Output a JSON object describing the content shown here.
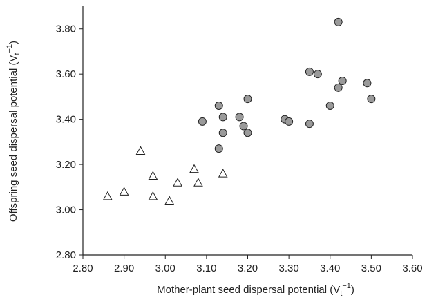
{
  "chart_data": {
    "type": "scatter",
    "x_label": {
      "text": "Mother-plant seed dispersal potential (V",
      "sub": "t",
      "sup": "−1",
      "end": ")"
    },
    "y_label": {
      "text": "Offspring seed dispersal potential (V",
      "sub": "t",
      "sup": "−1",
      "end": ")"
    },
    "xlim": [
      2.8,
      3.6
    ],
    "ylim": [
      2.8,
      3.9
    ],
    "xticks": [
      {
        "value": 2.8,
        "label": "2.80"
      },
      {
        "value": 2.9,
        "label": "2.90"
      },
      {
        "value": 3.0,
        "label": "3.00"
      },
      {
        "value": 3.1,
        "label": "3.10"
      },
      {
        "value": 3.2,
        "label": "3.20"
      },
      {
        "value": 3.3,
        "label": "3.30"
      },
      {
        "value": 3.4,
        "label": "3.40"
      },
      {
        "value": 3.5,
        "label": "3.50"
      },
      {
        "value": 3.6,
        "label": "3.60"
      }
    ],
    "yticks": [
      {
        "value": 2.8,
        "label": "2.80"
      },
      {
        "value": 3.0,
        "label": "3.00"
      },
      {
        "value": 3.2,
        "label": "3.20"
      },
      {
        "value": 3.4,
        "label": "3.40"
      },
      {
        "value": 3.6,
        "label": "3.60"
      },
      {
        "value": 3.8,
        "label": "3.80"
      }
    ],
    "series": [
      {
        "marker": "triangle",
        "color": "#ffffff",
        "x": [
          2.86,
          2.9,
          2.94,
          2.97,
          2.97,
          3.01,
          3.03,
          3.07,
          3.08,
          3.14
        ],
        "values": [
          3.06,
          3.08,
          3.26,
          3.15,
          3.06,
          3.04,
          3.12,
          3.18,
          3.12,
          3.16
        ]
      },
      {
        "marker": "circle",
        "color": "#9a9a9a",
        "x": [
          3.09,
          3.13,
          3.14,
          3.14,
          3.13,
          3.18,
          3.19,
          3.2,
          3.2,
          3.29,
          3.3,
          3.35,
          3.35,
          3.37,
          3.4,
          3.42,
          3.42,
          3.43,
          3.49,
          3.5
        ],
        "values": [
          3.39,
          3.46,
          3.41,
          3.34,
          3.27,
          3.41,
          3.37,
          3.49,
          3.34,
          3.4,
          3.39,
          3.38,
          3.61,
          3.6,
          3.46,
          3.83,
          3.54,
          3.57,
          3.56,
          3.49
        ]
      }
    ]
  }
}
